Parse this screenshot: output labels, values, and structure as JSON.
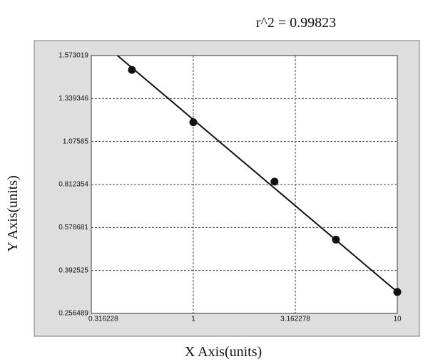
{
  "chart_data": {
    "type": "scatter",
    "annotation": "r^2 = 0.99823",
    "x_label": "X Axis(units)",
    "y_label": "Y Axis(units)",
    "x": [
      0.5,
      1,
      2.5,
      5,
      10
    ],
    "values": [
      1.495,
      1.194,
      0.83,
      0.526,
      0.3245
    ],
    "color": "#111111",
    "fit_line": {
      "x": [
        0.425,
        10
      ],
      "y": [
        1.573019,
        0.3245
      ]
    },
    "xlim": [
      0.316228,
      10
    ],
    "xticks": [
      0.316228,
      1,
      3.162278,
      10
    ],
    "x_log": true,
    "ylim": [
      0.256489,
      1.573019
    ],
    "yticks": [
      0.256489,
      0.392525,
      0.578681,
      0.812354,
      1.07585,
      1.339346,
      1.573019
    ],
    "grid": true
  }
}
